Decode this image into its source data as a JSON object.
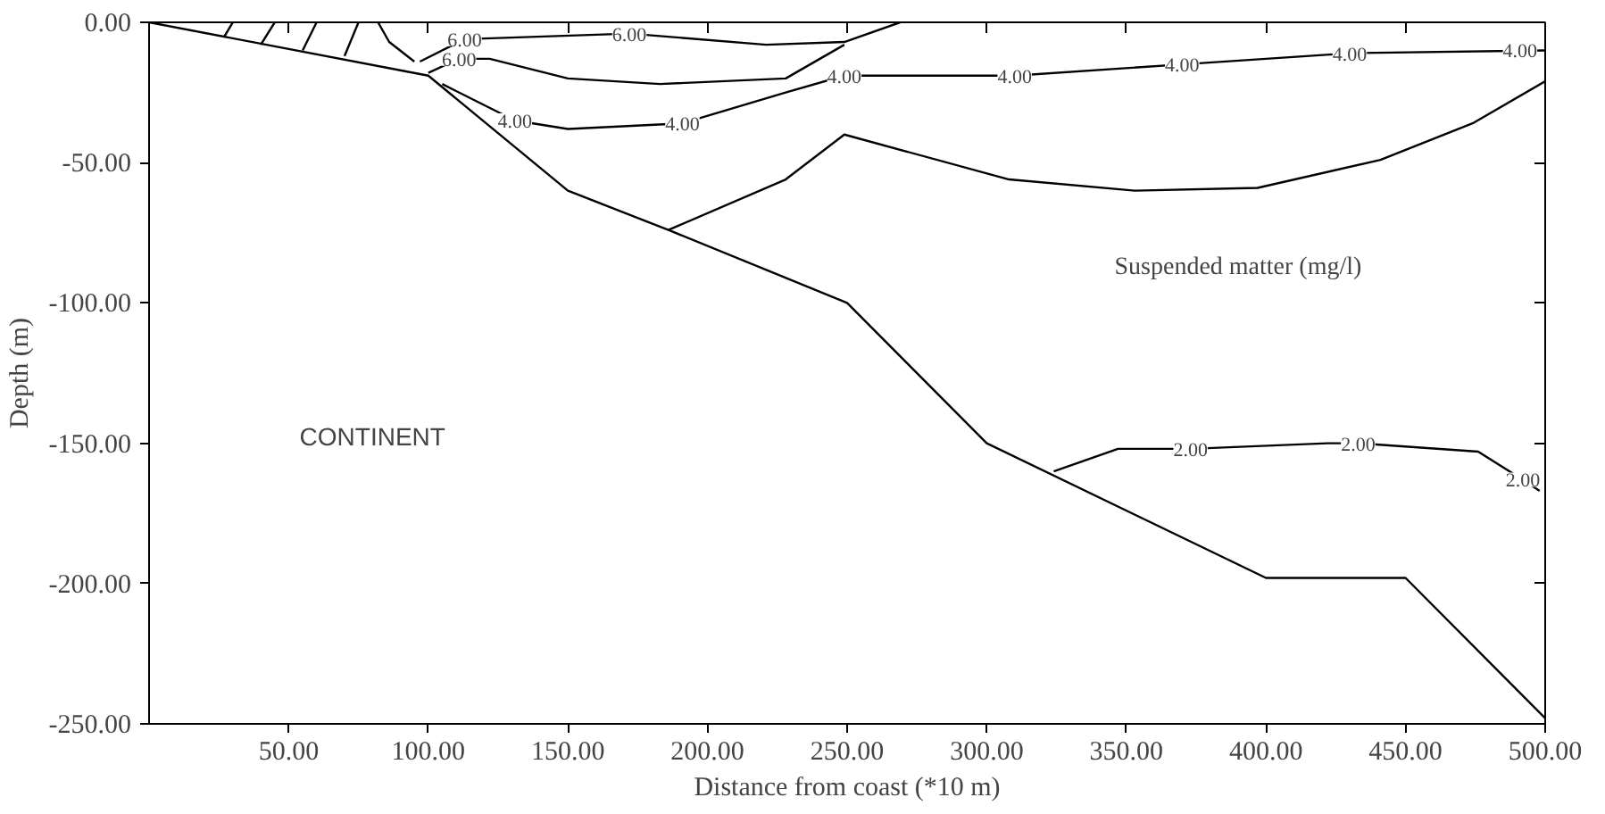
{
  "chart_data": {
    "type": "line",
    "xlabel": "Distance from coast (*10 m)",
    "ylabel": "Depth (m)",
    "xlim": [
      0,
      500
    ],
    "ylim": [
      -250,
      0
    ],
    "xticks": [
      {
        "value": 50,
        "label": "50.00"
      },
      {
        "value": 100,
        "label": "100.00"
      },
      {
        "value": 150,
        "label": "150.00"
      },
      {
        "value": 200,
        "label": "200.00"
      },
      {
        "value": 250,
        "label": "250.00"
      },
      {
        "value": 300,
        "label": "300.00"
      },
      {
        "value": 350,
        "label": "350.00"
      },
      {
        "value": 400,
        "label": "400.00"
      },
      {
        "value": 450,
        "label": "450.00"
      },
      {
        "value": 500,
        "label": "500.00"
      }
    ],
    "yticks": [
      {
        "value": 0,
        "label": "0.00"
      },
      {
        "value": -50,
        "label": "-50.00"
      },
      {
        "value": -100,
        "label": "-100.00"
      },
      {
        "value": -150,
        "label": "-150.00"
      },
      {
        "value": -200,
        "label": "-200.00"
      },
      {
        "value": -250,
        "label": "-250.00"
      }
    ],
    "grid": false,
    "line_style": "solid",
    "series": [
      {
        "color": "#000000",
        "x": [
          0,
          100,
          150,
          186,
          250,
          300,
          400,
          450,
          500
        ],
        "values": [
          0,
          -19,
          -60,
          -74,
          -100,
          -150,
          -198,
          -198,
          -248
        ]
      },
      {
        "color": "#000000",
        "x": [
          324,
          347,
          373,
          422,
          433,
          476,
          492,
          498
        ],
        "values": [
          -160,
          -152,
          -152,
          -150,
          -150,
          -153,
          -163,
          -167
        ]
      },
      {
        "color": "#000000",
        "x": [
          186,
          228,
          249,
          308,
          353,
          397,
          441,
          474,
          500
        ],
        "values": [
          -74,
          -56,
          -40,
          -56,
          -60,
          -59,
          -49,
          -36,
          -21
        ]
      },
      {
        "color": "#000000",
        "x": [
          105,
          131,
          150,
          191,
          228,
          249,
          310,
          370,
          430,
          500
        ],
        "values": [
          -22,
          -35,
          -38,
          -36,
          -25,
          -19,
          -19,
          -15,
          -11,
          -10
        ]
      },
      {
        "color": "#000000",
        "x": [
          100,
          111,
          122,
          150,
          183,
          228,
          249
        ],
        "values": [
          -18,
          -13,
          -13,
          -20,
          -22,
          -20,
          -8
        ]
      },
      {
        "color": "#000000",
        "x": [
          97,
          113,
          172,
          221,
          249,
          269
        ],
        "values": [
          -14,
          -6,
          -4,
          -8,
          -7,
          0
        ]
      },
      {
        "color": "#000000",
        "x": [
          30,
          27
        ],
        "values": [
          0,
          -5
        ]
      },
      {
        "color": "#000000",
        "x": [
          45,
          40
        ],
        "values": [
          0,
          -8
        ]
      },
      {
        "color": "#000000",
        "x": [
          60,
          55
        ],
        "values": [
          0,
          -10
        ]
      },
      {
        "color": "#000000",
        "x": [
          75,
          70
        ],
        "values": [
          0,
          -12
        ]
      },
      {
        "color": "#000000",
        "x": [
          82,
          86,
          95
        ],
        "values": [
          0,
          -7,
          -14
        ]
      }
    ],
    "annotations": [
      "CONTINENT",
      "Suspended matter (mg/l)",
      {
        "text": "6.00",
        "x": 113,
        "y": -6
      },
      {
        "text": "6.00",
        "x": 172,
        "y": -4
      },
      {
        "text": "6.00",
        "x": 111,
        "y": -13
      },
      {
        "text": "4.00",
        "x": 131,
        "y": -35
      },
      {
        "text": "4.00",
        "x": 191,
        "y": -36
      },
      {
        "text": "4.00",
        "x": 249,
        "y": -19
      },
      {
        "text": "4.00",
        "x": 310,
        "y": -19
      },
      {
        "text": "4.00",
        "x": 370,
        "y": -15
      },
      {
        "text": "4.00",
        "x": 430,
        "y": -11
      },
      {
        "text": "4.00",
        "x": 491,
        "y": -10
      },
      {
        "text": "2.00",
        "x": 373,
        "y": -152
      },
      {
        "text": "2.00",
        "x": 433,
        "y": -150
      },
      {
        "text": "2.00",
        "x": 492,
        "y": -163
      }
    ]
  }
}
